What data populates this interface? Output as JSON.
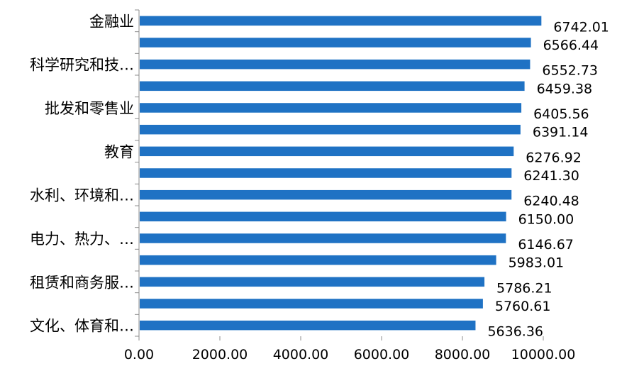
{
  "chart_data": {
    "type": "bar",
    "orientation": "horizontal",
    "title": "",
    "xlabel": "",
    "ylabel": "",
    "xlim": [
      0,
      10000
    ],
    "x_ticks": [
      "0.00",
      "2000.00",
      "4000.00",
      "6000.00",
      "8000.00",
      "10000.00"
    ],
    "grid": false,
    "legend": "none",
    "bar_color": "#1f72c4",
    "categories": [
      "金融业",
      "",
      "科学研究和技…",
      "",
      "批发和零售业",
      "",
      "教育",
      "",
      "水利、环境和…",
      "",
      "电力、热力、…",
      "",
      "租赁和商务服…",
      "",
      "文化、体育和…"
    ],
    "values": [
      6742.01,
      6566.44,
      6552.73,
      6459.38,
      6405.56,
      6391.14,
      6276.92,
      6241.3,
      6240.48,
      6150.0,
      6146.67,
      5983.01,
      5786.21,
      5760.61,
      5636.36
    ],
    "data_labels": [
      "6742.01",
      "6566.44",
      "6552.73",
      "6459.38",
      "6405.56",
      "6391.14",
      "6276.92",
      "6241.30",
      "6240.48",
      "6150.00",
      "6146.67",
      "5983.01",
      "5786.21",
      "5760.61",
      "5636.36"
    ]
  }
}
